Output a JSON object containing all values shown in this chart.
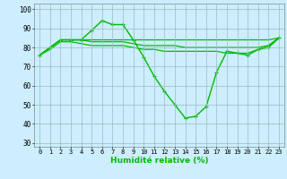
{
  "xlabel": "Humidité relative (%)",
  "background_color": "#cceeff",
  "grid_color": "#99bbbb",
  "line_color": "#00bb00",
  "xlim": [
    -0.5,
    23.5
  ],
  "ylim": [
    28,
    103
  ],
  "yticks": [
    30,
    40,
    50,
    60,
    70,
    80,
    90,
    100
  ],
  "xticks": [
    0,
    1,
    2,
    3,
    4,
    5,
    6,
    7,
    8,
    9,
    10,
    11,
    12,
    13,
    14,
    15,
    16,
    17,
    18,
    19,
    20,
    21,
    22,
    23
  ],
  "line_main": [
    76,
    80,
    84,
    84,
    84,
    89,
    94,
    92,
    92,
    84,
    75,
    65,
    57,
    50,
    43,
    44,
    49,
    67,
    78,
    77,
    76,
    79,
    80,
    85
  ],
  "line_upper": [
    76,
    80,
    84,
    84,
    84,
    84,
    84,
    84,
    84,
    84,
    84,
    84,
    84,
    84,
    84,
    84,
    84,
    84,
    84,
    84,
    84,
    84,
    84,
    85
  ],
  "line_mid1": [
    76,
    80,
    84,
    84,
    84,
    83,
    83,
    83,
    83,
    82,
    81,
    81,
    81,
    81,
    80,
    80,
    80,
    80,
    80,
    80,
    80,
    80,
    81,
    85
  ],
  "line_lower": [
    76,
    79,
    83,
    83,
    82,
    81,
    81,
    81,
    81,
    80,
    79,
    79,
    78,
    78,
    78,
    78,
    78,
    78,
    77,
    77,
    77,
    79,
    81,
    85
  ]
}
